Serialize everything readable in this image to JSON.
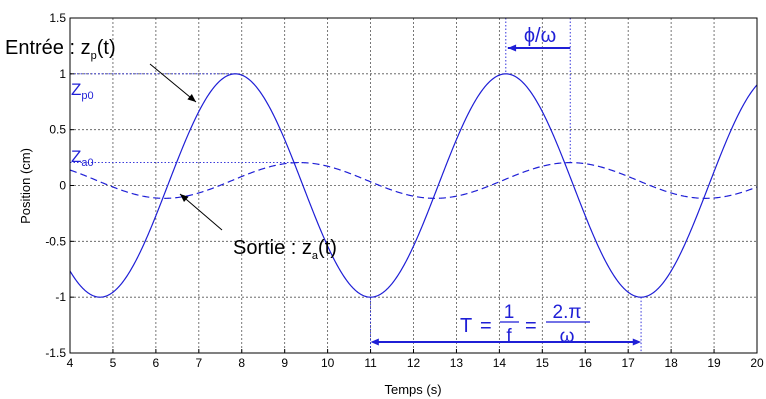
{
  "chart_data": {
    "type": "line",
    "xlabel": "Temps (s)",
    "ylabel": "Position (cm)",
    "xlim": [
      4,
      20
    ],
    "ylim": [
      -1.5,
      1.5
    ],
    "xticks": [
      "4",
      "5",
      "6",
      "7",
      "8",
      "9",
      "10",
      "11",
      "12",
      "13",
      "14",
      "15",
      "16",
      "17",
      "18",
      "19",
      "20"
    ],
    "yticks": [
      "1.5",
      "1",
      "0.5",
      "0",
      "-0.5",
      "-1",
      "-1.5"
    ],
    "grid": true,
    "series": [
      {
        "style": "solid",
        "color": "#1f1fd6",
        "function": "sine",
        "amplitude": 1.0,
        "period": 6.3,
        "max_at_t": 7.85,
        "x": [
          4,
          4.75,
          6.3,
          7.85,
          9.4,
          11.0,
          12.5,
          14.15,
          15.7,
          17.3,
          18.8,
          20
        ],
        "y": [
          -0.75,
          -1.0,
          0.0,
          1.0,
          0.0,
          -1.0,
          0.0,
          1.0,
          0.0,
          -1.0,
          0.0,
          0.87
        ]
      },
      {
        "style": "dashed",
        "color": "#1f1fd6",
        "function": "sine",
        "amplitude": 0.16,
        "offset": 0.045,
        "period": 6.3,
        "max_at_t": 9.35,
        "x": [
          4,
          6.2,
          9.35,
          12.5,
          15.7,
          18.8,
          20
        ],
        "y": [
          0.14,
          -0.11,
          0.16,
          -0.11,
          0.16,
          -0.11,
          0.0
        ]
      }
    ]
  },
  "annotations": {
    "entree": {
      "text": "Entrée : z",
      "sub": "p",
      "tail": "(t)"
    },
    "sortie": {
      "text": "Sortie : z",
      "sub": "a",
      "tail": "(t)"
    },
    "zp0": {
      "text": "Z",
      "sub": "p0"
    },
    "za0": {
      "text": "Z",
      "sub": "a0"
    },
    "phase": "ϕ/ω",
    "period": {
      "T": "T",
      "eq1": "=",
      "num1": "1",
      "den1": "f",
      "eq2": "=",
      "num2": "2.π",
      "den2": "ω"
    }
  },
  "colors": {
    "curve": "#1f1fd6",
    "annotation": "#1f1fd6",
    "grid": "#555555",
    "axis": "#000000",
    "text": "#000000"
  }
}
